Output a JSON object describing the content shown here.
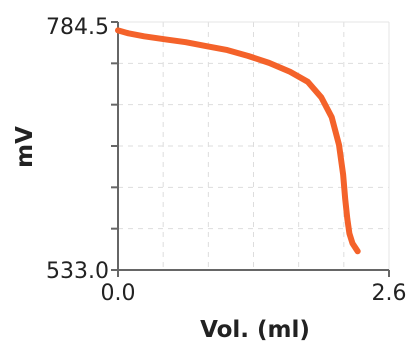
{
  "chart_data": {
    "type": "line",
    "title": "",
    "xlabel": "Vol. (ml)",
    "ylabel": "mV",
    "xlim": [
      0.0,
      2.6
    ],
    "ylim": [
      533.0,
      784.5
    ],
    "x_tick_labels": [
      "0.0",
      "2.6"
    ],
    "y_tick_labels": [
      "784.5",
      "533.0"
    ],
    "grid": true,
    "legend": "none",
    "series": [
      {
        "color": "#f4622a",
        "x": [
          0.0,
          0.1,
          0.25,
          0.45,
          0.65,
          0.85,
          1.05,
          1.25,
          1.45,
          1.65,
          1.82,
          1.95,
          2.05,
          2.12,
          2.16,
          2.18,
          2.2,
          2.22,
          2.25,
          2.3
        ],
        "y": [
          776,
          773,
          770,
          767,
          764,
          760,
          756,
          750,
          743,
          734,
          724,
          708,
          688,
          660,
          630,
          605,
          585,
          570,
          560,
          552
        ]
      }
    ]
  }
}
